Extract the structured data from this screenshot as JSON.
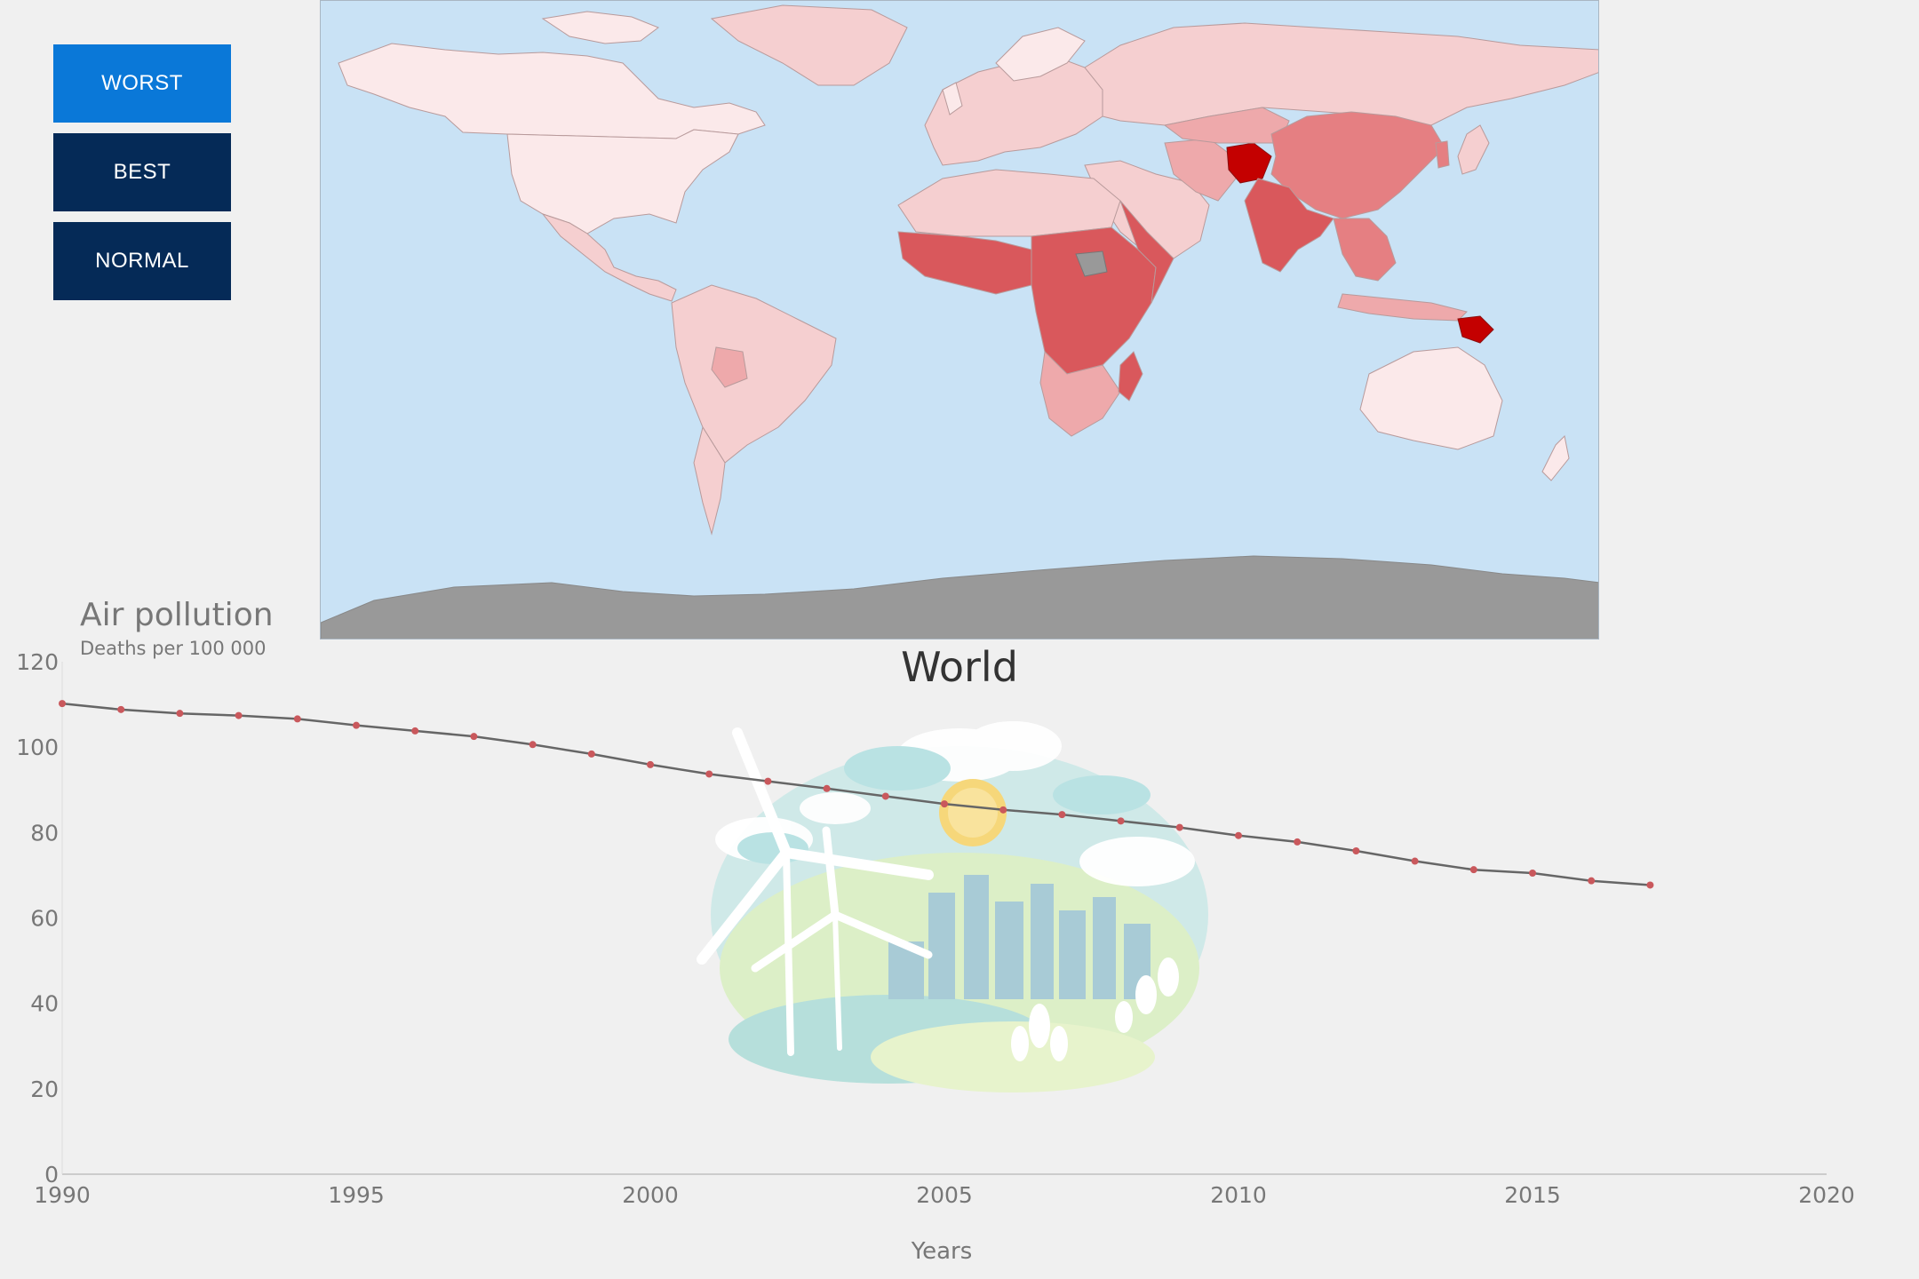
{
  "controls": {
    "worst_label": "WORST",
    "best_label": "BEST",
    "normal_label": "NORMAL",
    "active": "WORST",
    "active_color": "#0a78d8",
    "inactive_color": "#052a57"
  },
  "map": {
    "ocean_color": "#c9e2f5",
    "no_data_color": "#999999",
    "scale_colors": [
      "#fbe9ea",
      "#f5cfd0",
      "#eea9ab",
      "#e57f82",
      "#d9585c",
      "#c40000"
    ]
  },
  "chart": {
    "title": "Air pollution",
    "subtitle": "Deaths per 100 000",
    "region": "World",
    "x_axis_title": "Years",
    "line_color": "#666666",
    "marker_color": "#c9585c"
  },
  "chart_data": {
    "type": "line",
    "title": "Air pollution",
    "subtitle": "Deaths per 100 000",
    "xlabel": "Years",
    "ylabel": "",
    "xlim": [
      1990,
      2020
    ],
    "ylim": [
      0,
      120
    ],
    "x_ticks": [
      1990,
      1995,
      2000,
      2005,
      2010,
      2015,
      2020
    ],
    "y_ticks": [
      0,
      20,
      40,
      60,
      80,
      100,
      120
    ],
    "grid": false,
    "x": [
      1990,
      1991,
      1992,
      1993,
      1994,
      1995,
      1996,
      1997,
      1998,
      1999,
      2000,
      2001,
      2002,
      2003,
      2004,
      2005,
      2006,
      2007,
      2008,
      2009,
      2010,
      2011,
      2012,
      2013,
      2014,
      2015,
      2016,
      2017
    ],
    "y": [
      110.2,
      108.8,
      107.9,
      107.4,
      106.6,
      105.1,
      103.8,
      102.5,
      100.6,
      98.4,
      95.9,
      93.7,
      92.0,
      90.3,
      88.5,
      86.7,
      85.3,
      84.2,
      82.7,
      81.2,
      79.3,
      77.8,
      75.7,
      73.3,
      71.3,
      70.5,
      68.7,
      67.7
    ]
  }
}
